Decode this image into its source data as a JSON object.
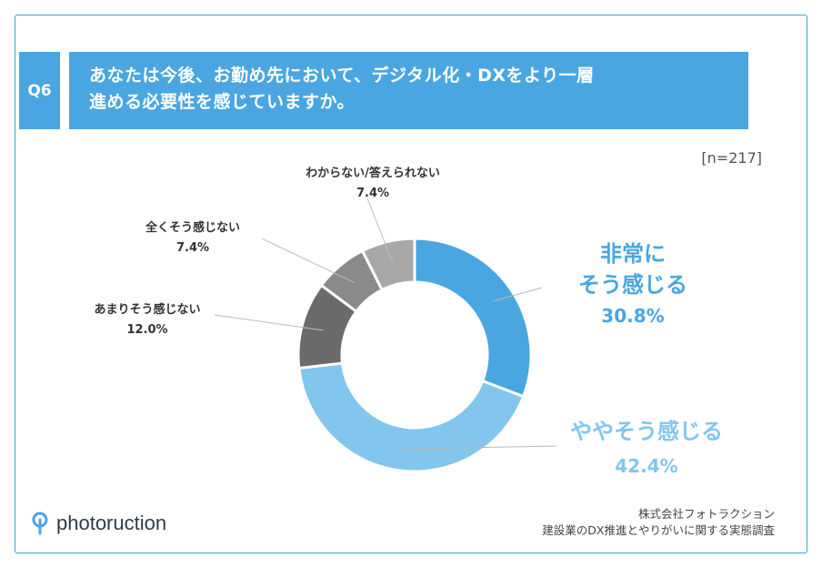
{
  "question": {
    "badge": "Q6",
    "line1": "あなたは今後、お勤め先において、デジタル化・DXをより一層",
    "line2": "進める必要性を感じていますか。"
  },
  "sample": "[n=217]",
  "chart_data": {
    "type": "pie",
    "donut": true,
    "categories": [
      "非常にそう感じる",
      "ややそう感じる",
      "あまりそう感じない",
      "全くそう感じない",
      "わからない/答えられない"
    ],
    "values": [
      30.8,
      42.4,
      12.0,
      7.4,
      7.4
    ],
    "value_labels": [
      "30.8%",
      "42.4%",
      "12.0%",
      "7.4%",
      "7.4%"
    ],
    "colors": [
      "#4aa6e0",
      "#82c6ee",
      "#6b6b6b",
      "#8a8a8a",
      "#a8a8a8"
    ]
  },
  "labels": {
    "s0": {
      "line1": "非常に",
      "line2": "そう感じる",
      "value": "30.8%"
    },
    "s1": {
      "line1": "ややそう感じる",
      "value": "42.4%"
    },
    "s2": {
      "line1": "あまりそう感じない",
      "value": "12.0%"
    },
    "s3": {
      "line1": "全くそう感じない",
      "value": "7.4%"
    },
    "s4": {
      "line1": "わからない/答えられない",
      "value": "7.4%"
    }
  },
  "footer": {
    "logo": "photoruction",
    "company": "株式会社フォトラクション",
    "survey": "建設業のDX推進とやりがいに関する実態調査"
  }
}
